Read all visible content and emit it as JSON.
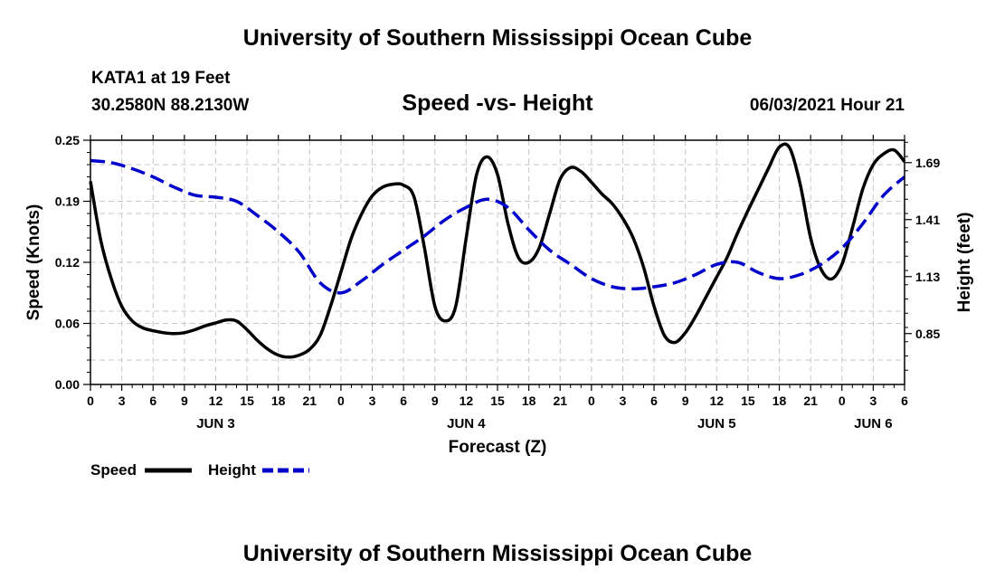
{
  "header": {
    "title": "University of Southern Mississippi Ocean Cube",
    "station": "KATA1 at 19 Feet",
    "coordinates": "30.2580N  88.2130W",
    "chart_title": "Speed -vs- Height",
    "timestamp": "06/03/2021 Hour 21"
  },
  "footer": {
    "title": "University of Southern Mississippi Ocean Cube"
  },
  "colors": {
    "speed": "#000000",
    "height": "#0000cc",
    "grid": "#c8c8c8"
  },
  "chart_data": {
    "type": "line",
    "title": "Speed -vs- Height",
    "xlabel": "Forecast (Z)",
    "ylabel_left": "Speed (Knots)",
    "ylabel_right": "Height (feet)",
    "x_unit": "hours from 2021-06-03 00Z",
    "xlim": [
      0,
      78
    ],
    "ylim_left": [
      0,
      0.25
    ],
    "ylim_right": [
      0.6,
      1.8
    ],
    "left_ticks": [
      "0.00",
      "0.06",
      "0.12",
      "0.19",
      "0.25"
    ],
    "left_tick_values": [
      0,
      0.0625,
      0.125,
      0.1875,
      0.25
    ],
    "right_ticks": [
      "0.85",
      "1.13",
      "1.41",
      "1.69"
    ],
    "right_tick_values": [
      0.85,
      1.13,
      1.41,
      1.69
    ],
    "x_tick_values": [
      0,
      3,
      6,
      9,
      12,
      15,
      18,
      21,
      24,
      27,
      30,
      33,
      36,
      39,
      42,
      45,
      48,
      51,
      54,
      57,
      60,
      63,
      66,
      69,
      72,
      75,
      78
    ],
    "x_tick_labels": [
      "0",
      "3",
      "6",
      "9",
      "12",
      "15",
      "18",
      "21",
      "0",
      "3",
      "6",
      "9",
      "12",
      "15",
      "18",
      "21",
      "0",
      "3",
      "6",
      "9",
      "12",
      "15",
      "18",
      "21",
      "0",
      "3",
      "6"
    ],
    "day_labels": [
      {
        "label": "JUN 3",
        "hour": 12
      },
      {
        "label": "JUN 4",
        "hour": 36
      },
      {
        "label": "JUN 5",
        "hour": 60
      },
      {
        "label": "JUN 6",
        "hour": 75
      }
    ],
    "legend": [
      {
        "name": "Speed",
        "style": "solid"
      },
      {
        "name": "Height",
        "style": "dashed"
      }
    ],
    "series": [
      {
        "name": "Speed",
        "axis": "left",
        "x": [
          0,
          1,
          2,
          3,
          4,
          5,
          6,
          7,
          8,
          9,
          10,
          11,
          12,
          13,
          14,
          15,
          16,
          17,
          18,
          19,
          20,
          21,
          22,
          23,
          24,
          25,
          26,
          27,
          28,
          29,
          30,
          31,
          32,
          33,
          34,
          35,
          36,
          37,
          38,
          39,
          40,
          41,
          42,
          43,
          44,
          45,
          46,
          47,
          48,
          49,
          50,
          51,
          52,
          53,
          54,
          55,
          56,
          57,
          58,
          59,
          60,
          61,
          62,
          63,
          64,
          65,
          66,
          67,
          68,
          69,
          70,
          71,
          72,
          73,
          74,
          75,
          76,
          77,
          78
        ],
        "values": [
          0.208,
          0.147,
          0.108,
          0.08,
          0.065,
          0.058,
          0.055,
          0.053,
          0.052,
          0.053,
          0.056,
          0.06,
          0.063,
          0.066,
          0.065,
          0.056,
          0.045,
          0.036,
          0.03,
          0.028,
          0.03,
          0.036,
          0.05,
          0.08,
          0.115,
          0.15,
          0.175,
          0.193,
          0.202,
          0.205,
          0.204,
          0.192,
          0.14,
          0.08,
          0.065,
          0.08,
          0.15,
          0.215,
          0.233,
          0.215,
          0.165,
          0.13,
          0.125,
          0.14,
          0.175,
          0.21,
          0.222,
          0.218,
          0.207,
          0.195,
          0.185,
          0.17,
          0.15,
          0.12,
          0.08,
          0.05,
          0.043,
          0.053,
          0.07,
          0.09,
          0.11,
          0.13,
          0.155,
          0.178,
          0.2,
          0.222,
          0.243,
          0.242,
          0.205,
          0.15,
          0.118,
          0.108,
          0.123,
          0.16,
          0.2,
          0.225,
          0.236,
          0.24,
          0.228
        ]
      },
      {
        "name": "Height",
        "axis": "right",
        "x": [
          0,
          2,
          4,
          6,
          8,
          10,
          12,
          14,
          16,
          18,
          20,
          22,
          24,
          26,
          28,
          30,
          32,
          34,
          36,
          38,
          40,
          42,
          44,
          46,
          48,
          50,
          52,
          54,
          56,
          58,
          60,
          62,
          64,
          66,
          68,
          70,
          72,
          74,
          76,
          78
        ],
        "values": [
          1.7,
          1.69,
          1.66,
          1.62,
          1.57,
          1.53,
          1.52,
          1.5,
          1.43,
          1.35,
          1.25,
          1.1,
          1.05,
          1.11,
          1.19,
          1.26,
          1.33,
          1.41,
          1.47,
          1.51,
          1.47,
          1.36,
          1.26,
          1.19,
          1.12,
          1.08,
          1.07,
          1.08,
          1.1,
          1.14,
          1.19,
          1.2,
          1.15,
          1.12,
          1.14,
          1.19,
          1.27,
          1.39,
          1.53,
          1.62
        ]
      }
    ]
  }
}
